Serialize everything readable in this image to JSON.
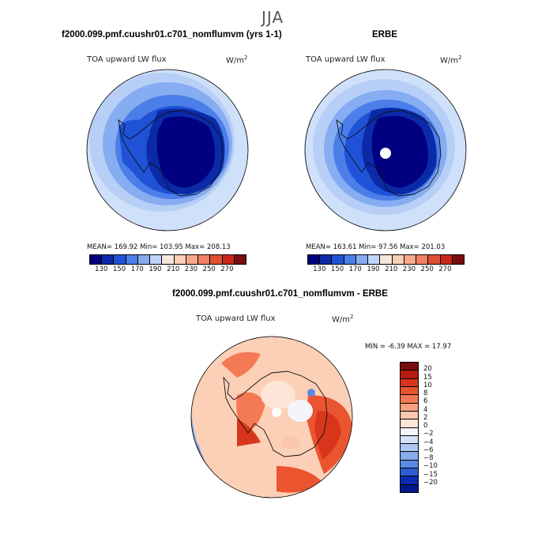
{
  "season": "JJA",
  "panels": {
    "model": {
      "title": "f2000.099.pmf.cuushr01.c701_nomflumvm (yrs 1-1)",
      "variable": "TOA upward LW flux",
      "units": "W/m",
      "units_exp": "2",
      "stats": "MEAN= 169.92   Min= 103.95   Max= 208.13"
    },
    "obs": {
      "title": "ERBE",
      "variable": "TOA upward LW flux",
      "units": "W/m",
      "units_exp": "2",
      "stats": "MEAN= 163.61   Min=  97.56   Max= 201.03"
    },
    "diff": {
      "title": "f2000.099.pmf.cuushr01.c701_nomflumvm - ERBE",
      "variable": "TOA upward LW flux",
      "units": "W/m",
      "units_exp": "2",
      "stats": "MIN =   -6.39  MAX =   17.97"
    }
  },
  "chart_data": [
    {
      "type": "heatmap",
      "projection": "south polar stereographic",
      "title": "f2000.099.pmf.cuushr01.c701_nomflumvm (yrs 1-1)",
      "variable": "TOA upward LW flux",
      "units": "W/m2",
      "mean": 169.92,
      "min": 103.95,
      "max": 208.13,
      "levels": [
        130,
        150,
        170,
        190,
        210,
        230,
        250,
        270
      ],
      "colors": [
        "#000080",
        "#0a2aa8",
        "#1f52d6",
        "#4b7ee8",
        "#86acf2",
        "#bfd6fa",
        "#f6e7dc",
        "#fbd0b6",
        "#f7a98a",
        "#f28064",
        "#e05134",
        "#c82818",
        "#7a0d0d"
      ]
    },
    {
      "type": "heatmap",
      "projection": "south polar stereographic",
      "title": "ERBE",
      "variable": "TOA upward LW flux",
      "units": "W/m2",
      "mean": 163.61,
      "min": 97.56,
      "max": 201.03,
      "levels": [
        130,
        150,
        170,
        190,
        210,
        230,
        250,
        270
      ],
      "colors": [
        "#000080",
        "#0a2aa8",
        "#1f52d6",
        "#4b7ee8",
        "#86acf2",
        "#bfd6fa",
        "#f6e7dc",
        "#fbd0b6",
        "#f7a98a",
        "#f28064",
        "#e05134",
        "#c82818",
        "#7a0d0d"
      ]
    },
    {
      "type": "heatmap",
      "projection": "south polar stereographic",
      "title": "f2000.099.pmf.cuushr01.c701_nomflumvm - ERBE",
      "variable": "TOA upward LW flux",
      "units": "W/m2",
      "min": -6.39,
      "max": 17.97,
      "levels": [
        20,
        15,
        10,
        8,
        6,
        4,
        2,
        0,
        -2,
        -4,
        -6,
        -8,
        -10,
        -15,
        -20
      ],
      "level_labels": [
        "20",
        "15",
        "10",
        "8",
        "6",
        "4",
        "2",
        "0",
        "−2",
        "−4",
        "−6",
        "−8",
        "−10",
        "−15",
        "−20"
      ],
      "colors": [
        "#7a0d0d",
        "#b41d10",
        "#d8361c",
        "#ea5530",
        "#f37a55",
        "#f7a07d",
        "#fac6ad",
        "#fde6d8",
        "#f4f4fb",
        "#d3e2f8",
        "#adc8f2",
        "#86acec",
        "#5b8ae4",
        "#2d5dd6",
        "#0a2cb0",
        "#001a8a"
      ]
    }
  ]
}
